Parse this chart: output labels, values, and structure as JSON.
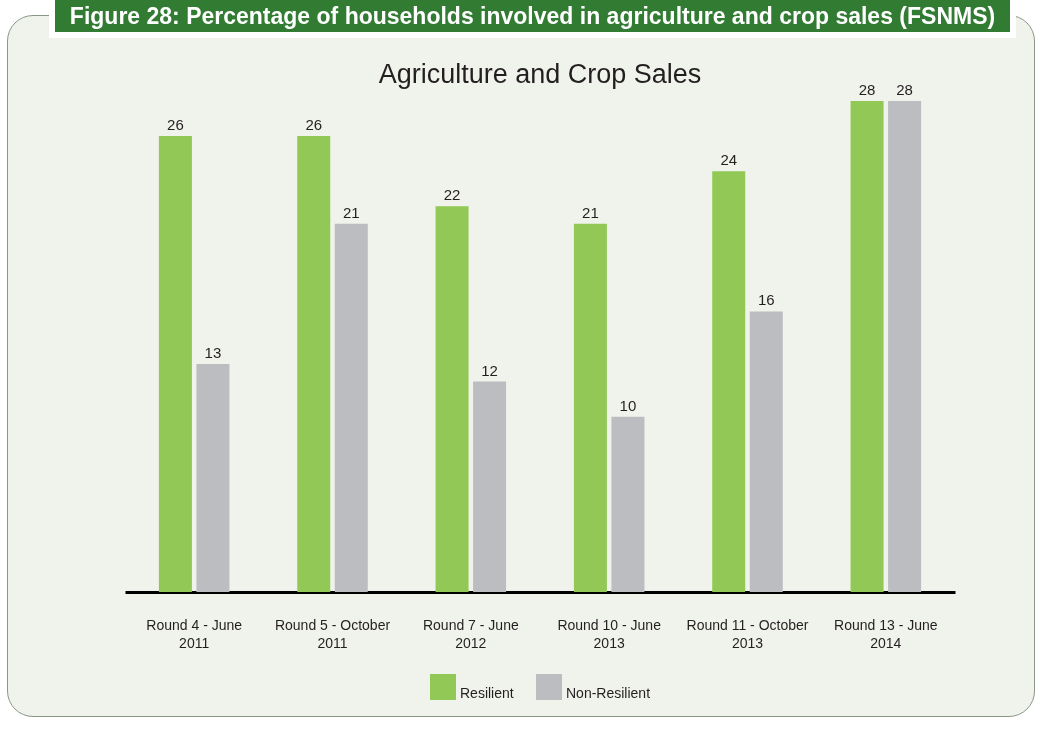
{
  "chart_data": {
    "type": "bar",
    "title": "Figure 28: Percentage of households involved in agriculture and crop sales (FSNMS)",
    "subtitle": "Agriculture and Crop Sales",
    "categories": [
      "Round 4 - June 2011",
      "Round 5 - October 2011",
      "Round 7 - June 2012",
      "Round 10 - June 2013",
      "Round 11 - October 2013",
      "Round 13 - June 2014"
    ],
    "series": [
      {
        "name": "Resilient",
        "color": "#92c956",
        "values": [
          26,
          26,
          22,
          21,
          24,
          28
        ]
      },
      {
        "name": "Non-Resilient",
        "color": "#bcbdc0",
        "values": [
          13,
          21,
          12,
          10,
          16,
          28
        ]
      }
    ],
    "data_labels": true,
    "legend": "bottom"
  }
}
